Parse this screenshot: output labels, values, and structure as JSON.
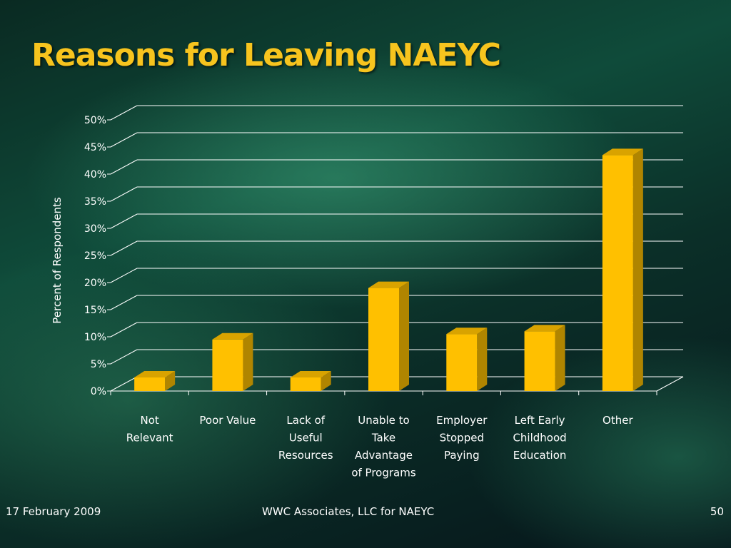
{
  "slide": {
    "title": "Reasons for Leaving NAEYC",
    "footer_left": "17 February 2009",
    "footer_center": "WWC Associates, LLC for NAEYC",
    "footer_right": "50"
  },
  "colors": {
    "bar_front": "#ffc000",
    "bar_side": "#b08500",
    "bar_top": "#d9a300",
    "title": "#f7c41e"
  },
  "chart_data": {
    "type": "bar",
    "title": "",
    "xlabel": "",
    "ylabel": "Percent of Respondents",
    "categories": [
      [
        "Not",
        "Relevant"
      ],
      [
        "Poor Value"
      ],
      [
        "Lack of",
        "Useful",
        "Resources"
      ],
      [
        "Unable to",
        "Take",
        "Advantage",
        "of Programs"
      ],
      [
        "Employer",
        "Stopped",
        "Paying"
      ],
      [
        "Left Early",
        "Childhood",
        "Education"
      ],
      [
        "Other"
      ]
    ],
    "values": [
      2.5,
      9.5,
      2.5,
      19,
      10.5,
      11,
      43.5
    ],
    "ylim": [
      0,
      50
    ],
    "yticks": [
      "0%",
      "5%",
      "10%",
      "15%",
      "20%",
      "25%",
      "30%",
      "35%",
      "40%",
      "45%",
      "50%"
    ],
    "grid": true,
    "legend": "none",
    "style": "3d"
  }
}
